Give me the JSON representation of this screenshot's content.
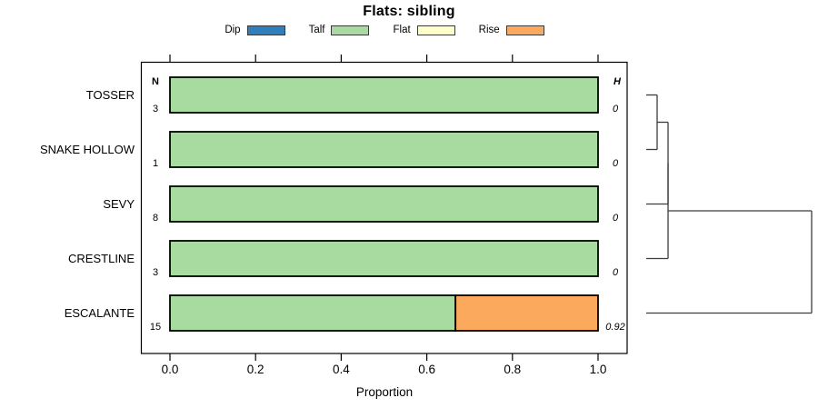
{
  "chart_data": {
    "type": "bar",
    "orientation": "horizontal_stacked",
    "title": "Flats: sibling",
    "xlabel": "Proportion",
    "xlim": [
      0.0,
      1.0
    ],
    "xticks": [
      {
        "v": 0.0,
        "label": "0.0"
      },
      {
        "v": 0.2,
        "label": "0.2"
      },
      {
        "v": 0.4,
        "label": "0.4"
      },
      {
        "v": 0.6,
        "label": "0.6"
      },
      {
        "v": 0.8,
        "label": "0.8"
      },
      {
        "v": 1.0,
        "label": "1.0"
      }
    ],
    "legend": [
      {
        "label": "Dip",
        "color": "#2e7fbc"
      },
      {
        "label": "Talf",
        "color": "#a8dba0"
      },
      {
        "label": "Flat",
        "color": "#ffffc9"
      },
      {
        "label": "Rise",
        "color": "#fbaa5d"
      }
    ],
    "columns": {
      "n_header": "N",
      "h_header": "H"
    },
    "rows": [
      {
        "label": "TOSSER",
        "n": "3",
        "h": "0",
        "segments": [
          {
            "category": "Talf",
            "value": 1.0
          }
        ]
      },
      {
        "label": "SNAKE HOLLOW",
        "n": "1",
        "h": "0",
        "segments": [
          {
            "category": "Talf",
            "value": 1.0
          }
        ]
      },
      {
        "label": "SEVY",
        "n": "8",
        "h": "0",
        "segments": [
          {
            "category": "Talf",
            "value": 1.0
          }
        ]
      },
      {
        "label": "CRESTLINE",
        "n": "3",
        "h": "0",
        "segments": [
          {
            "category": "Talf",
            "value": 1.0
          }
        ]
      },
      {
        "label": "ESCALANTE",
        "n": "15",
        "h": "0.92",
        "segments": [
          {
            "category": "Talf",
            "value": 0.667
          },
          {
            "category": "Rise",
            "value": 0.333
          }
        ]
      }
    ],
    "dendrogram": {
      "leaf_order": [
        "TOSSER",
        "SNAKE HOLLOW",
        "SEVY",
        "CRESTLINE",
        "ESCALANTE"
      ],
      "merges": [
        {
          "left": "TOSSER",
          "right": "SNAKE HOLLOW",
          "rel_height": 0.066
        },
        {
          "left": "m0",
          "right": "SEVY",
          "rel_height": 0.132
        },
        {
          "left": "m1",
          "right": "CRESTLINE",
          "rel_height": 0.132
        },
        {
          "left": "m2",
          "right": "ESCALANTE",
          "rel_height": 1.0
        }
      ]
    },
    "frame_color": "#000000",
    "bar_border_color": "#000000",
    "dendrogram_color": "#3c3c3c"
  }
}
